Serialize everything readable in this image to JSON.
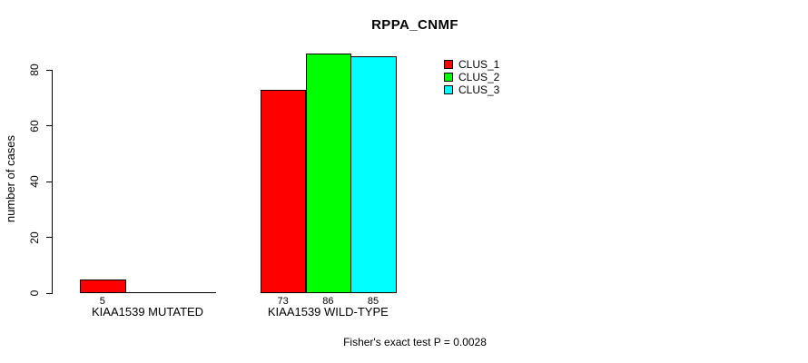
{
  "chart_data": {
    "type": "bar",
    "title": "RPPA_CNMF",
    "xlabel": "",
    "ylabel": "number of cases",
    "ylim": [
      0,
      80
    ],
    "yticks": [
      0,
      20,
      40,
      60,
      80
    ],
    "grid": false,
    "legend_position": "top-right",
    "categories": [
      "KIAA1539 MUTATED",
      "KIAA1539 WILD-TYPE"
    ],
    "series": [
      {
        "name": "CLUS_1",
        "color": "#ff0000",
        "values": [
          5,
          73
        ]
      },
      {
        "name": "CLUS_2",
        "color": "#00ff00",
        "values": [
          0,
          86
        ]
      },
      {
        "name": "CLUS_3",
        "color": "#00ffff",
        "values": [
          0,
          85
        ]
      }
    ],
    "bar_value_labels": [
      5,
      73,
      86,
      85
    ],
    "annotation": "Fisher's exact test P = 0.0028"
  }
}
